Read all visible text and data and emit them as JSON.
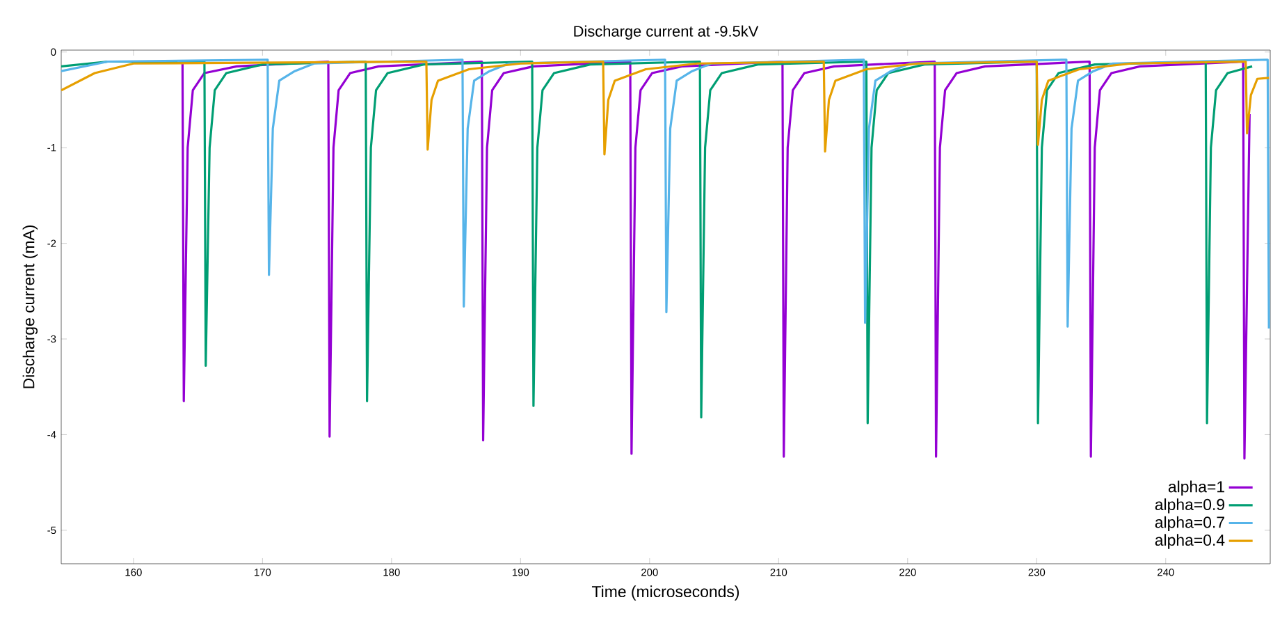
{
  "chart_data": {
    "type": "line",
    "title": "Discharge current at -9.5kV",
    "xlabel": "Time (microseconds)",
    "ylabel": "Discharge current (mA)",
    "xlim": [
      154.4,
      248.1
    ],
    "ylim": [
      -5.35,
      0.02
    ],
    "xticks": [
      160,
      170,
      180,
      190,
      200,
      210,
      220,
      230,
      240
    ],
    "yticks": [
      0,
      -1,
      -2,
      -3,
      -4,
      -5
    ],
    "grid": false,
    "legend": "bottom right",
    "marker": "none",
    "line_style": "solid",
    "series": [
      {
        "name": "alpha=1",
        "color": "#9400d3",
        "x": [
          163.8,
          163.9,
          164.2,
          164.6,
          165.5,
          168,
          175.1,
          175.2,
          175.5,
          175.9,
          176.8,
          179,
          187.0,
          187.1,
          187.4,
          187.8,
          188.7,
          191,
          198.5,
          198.6,
          198.9,
          199.3,
          200.2,
          202.5,
          210.3,
          210.4,
          210.7,
          211.1,
          212,
          214.3,
          222.1,
          222.2,
          222.5,
          222.9,
          223.8,
          226,
          234.1,
          234.2,
          234.5,
          234.9,
          235.8,
          238,
          246.0,
          246.1,
          246.5
        ],
        "values": [
          -0.1,
          -3.65,
          -1.0,
          -0.4,
          -0.22,
          -0.15,
          -0.1,
          -4.02,
          -1.0,
          -0.4,
          -0.22,
          -0.15,
          -0.1,
          -4.06,
          -1.0,
          -0.4,
          -0.22,
          -0.15,
          -0.1,
          -4.2,
          -1.0,
          -0.4,
          -0.22,
          -0.15,
          -0.1,
          -4.23,
          -1.0,
          -0.4,
          -0.22,
          -0.15,
          -0.1,
          -4.23,
          -1.0,
          -0.4,
          -0.22,
          -0.15,
          -0.1,
          -4.23,
          -1.0,
          -0.4,
          -0.22,
          -0.15,
          -0.1,
          -4.25,
          -0.65
        ]
      },
      {
        "name": "alpha=0.9",
        "color": "#009e73",
        "x": [
          154.4,
          158,
          165.5,
          165.6,
          165.9,
          166.3,
          167.2,
          170,
          178.0,
          178.1,
          178.4,
          178.8,
          179.7,
          182.5,
          190.9,
          191.0,
          191.3,
          191.7,
          192.6,
          195.4,
          203.9,
          204.0,
          204.3,
          204.7,
          205.6,
          208.4,
          216.8,
          216.9,
          217.2,
          217.6,
          218.5,
          221.3,
          230.0,
          230.1,
          230.4,
          230.8,
          231.7,
          234.5,
          243.1,
          243.2,
          243.5,
          243.9,
          244.8,
          246.7
        ],
        "values": [
          -0.15,
          -0.1,
          -0.1,
          -3.28,
          -1.0,
          -0.4,
          -0.22,
          -0.13,
          -0.1,
          -3.65,
          -1.0,
          -0.4,
          -0.22,
          -0.13,
          -0.1,
          -3.7,
          -1.0,
          -0.4,
          -0.22,
          -0.13,
          -0.1,
          -3.82,
          -1.0,
          -0.4,
          -0.22,
          -0.13,
          -0.1,
          -3.88,
          -1.0,
          -0.4,
          -0.22,
          -0.13,
          -0.1,
          -3.88,
          -1.0,
          -0.4,
          -0.22,
          -0.13,
          -0.1,
          -3.88,
          -1.0,
          -0.4,
          -0.22,
          -0.15
        ]
      },
      {
        "name": "alpha=0.7",
        "color": "#56b4e9",
        "x": [
          154.4,
          158,
          170.4,
          170.5,
          170.8,
          171.3,
          172.5,
          174,
          185.5,
          185.6,
          185.9,
          186.4,
          187.6,
          189.1,
          201.2,
          201.3,
          201.6,
          202.1,
          203.3,
          204.8,
          216.6,
          216.7,
          217.0,
          217.5,
          218.7,
          220.2,
          232.3,
          232.4,
          232.7,
          233.2,
          234.4,
          235.9,
          247.9,
          248.0
        ],
        "values": [
          -0.2,
          -0.1,
          -0.08,
          -2.33,
          -0.8,
          -0.3,
          -0.2,
          -0.12,
          -0.08,
          -2.66,
          -0.8,
          -0.3,
          -0.2,
          -0.12,
          -0.08,
          -2.72,
          -0.8,
          -0.3,
          -0.2,
          -0.12,
          -0.08,
          -2.83,
          -0.8,
          -0.3,
          -0.2,
          -0.12,
          -0.08,
          -2.87,
          -0.8,
          -0.3,
          -0.2,
          -0.12,
          -0.08,
          -2.89
        ]
      },
      {
        "name": "alpha=0.4",
        "color": "#e69f00",
        "x": [
          154.4,
          157,
          160,
          182.7,
          182.8,
          183.1,
          183.6,
          186,
          190,
          196.4,
          196.5,
          196.8,
          197.3,
          199.7,
          203.7,
          213.5,
          213.6,
          213.9,
          214.4,
          216.8,
          220.8,
          230.0,
          230.1,
          230.4,
          230.9,
          233.3,
          237.3,
          246.2,
          246.3,
          246.6,
          247.1,
          248.0
        ],
        "values": [
          -0.4,
          -0.22,
          -0.12,
          -0.1,
          -1.02,
          -0.5,
          -0.3,
          -0.18,
          -0.12,
          -0.1,
          -1.07,
          -0.5,
          -0.3,
          -0.18,
          -0.12,
          -0.1,
          -1.04,
          -0.5,
          -0.3,
          -0.18,
          -0.12,
          -0.1,
          -0.97,
          -0.5,
          -0.3,
          -0.18,
          -0.12,
          -0.1,
          -0.85,
          -0.45,
          -0.28,
          -0.27
        ]
      }
    ]
  }
}
